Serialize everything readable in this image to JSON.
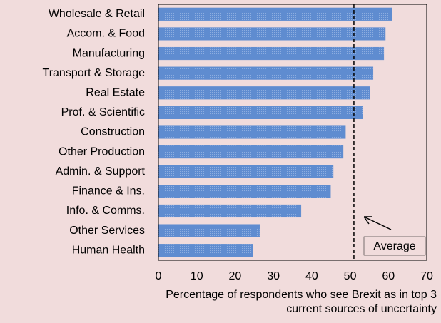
{
  "chart_data": {
    "type": "barh",
    "categories": [
      "Wholesale & Retail",
      "Accom. & Food",
      "Manufacturing",
      "Transport & Storage",
      "Real Estate",
      "Prof. & Scientific",
      "Construction",
      "Other Production",
      "Admin. & Support",
      "Finance & Ins.",
      "Info. & Comms.",
      "Other Services",
      "Human Health"
    ],
    "values": [
      60.9,
      59.2,
      58.8,
      56,
      55.1,
      53.3,
      48.8,
      48.2,
      45.6,
      44.9,
      37.2,
      26.4,
      24.6
    ],
    "color": "#5f8cd0",
    "xlim": [
      0,
      70
    ],
    "xticks": [
      0,
      10,
      20,
      30,
      40,
      50,
      60,
      70
    ],
    "xlabel": [
      "Percentage of respondents who see Brexit as in top 3",
      "current sources of uncertainty"
    ],
    "reference_line": {
      "value": 51,
      "label": "Average"
    }
  }
}
